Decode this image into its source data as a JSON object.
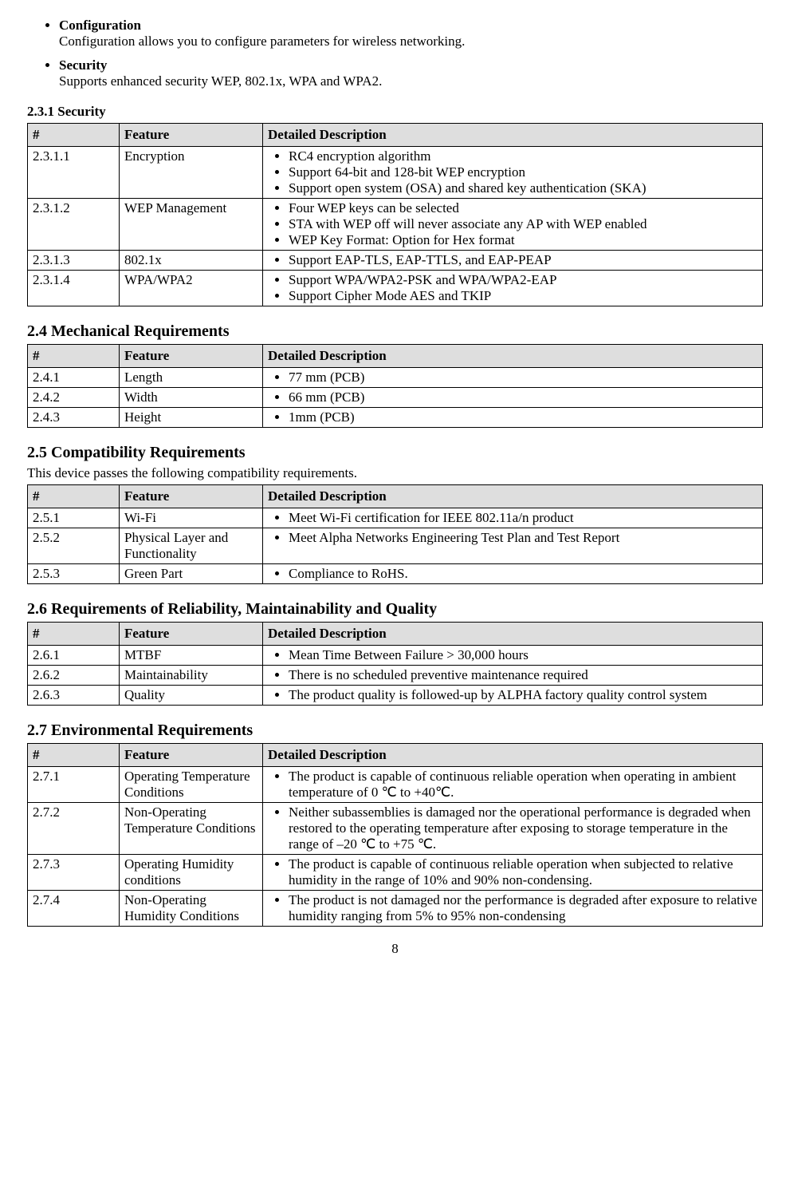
{
  "intro_bullets": [
    {
      "title": "Configuration",
      "body": "Configuration allows you to configure parameters for wireless networking."
    },
    {
      "title": "Security",
      "body": "Supports enhanced security WEP, 802.1x, WPA and WPA2."
    }
  ],
  "table_headers": {
    "num": "#",
    "feature": "Feature",
    "desc": "Detailed Description"
  },
  "s231": {
    "title": "2.3.1 Security",
    "rows": [
      {
        "num": "2.3.1.1",
        "feature": "Encryption",
        "items": [
          "RC4 encryption algorithm",
          "Support 64-bit and 128-bit WEP encryption",
          "Support open system (OSA) and shared key authentication (SKA)"
        ]
      },
      {
        "num": "2.3.1.2",
        "feature": "WEP Management",
        "items": [
          "Four WEP keys can be selected",
          "STA with WEP off will never associate any AP with WEP enabled",
          "WEP Key Format: Option for Hex format"
        ]
      },
      {
        "num": "2.3.1.3",
        "feature": "802.1x",
        "items": [
          "Support EAP-TLS, EAP-TTLS, and EAP-PEAP"
        ]
      },
      {
        "num": "2.3.1.4",
        "feature": "WPA/WPA2",
        "items": [
          "Support WPA/WPA2-PSK and WPA/WPA2-EAP",
          "Support Cipher Mode AES and TKIP"
        ]
      }
    ]
  },
  "s24": {
    "title": "2.4 Mechanical Requirements",
    "rows": [
      {
        "num": "2.4.1",
        "feature": "Length",
        "items": [
          "77 mm (PCB)"
        ]
      },
      {
        "num": "2.4.2",
        "feature": "Width",
        "items": [
          "66 mm (PCB)"
        ]
      },
      {
        "num": "2.4.3",
        "feature": "Height",
        "items": [
          "1mm (PCB)"
        ]
      }
    ]
  },
  "s25": {
    "title": "2.5 Compatibility Requirements",
    "intro": "This device passes the following compatibility requirements.",
    "rows": [
      {
        "num": "2.5.1",
        "feature": "Wi-Fi",
        "items": [
          "Meet Wi-Fi certification for IEEE 802.11a/n product"
        ]
      },
      {
        "num": "2.5.2",
        "feature": "Physical Layer and Functionality",
        "items": [
          "Meet Alpha Networks Engineering Test Plan and Test Report"
        ]
      },
      {
        "num": "2.5.3",
        "feature": "Green Part",
        "items": [
          "Compliance to RoHS."
        ]
      }
    ]
  },
  "s26": {
    "title": "2.6 Requirements of Reliability, Maintainability and Quality",
    "rows": [
      {
        "num": "2.6.1",
        "feature": "MTBF",
        "items": [
          "Mean Time Between Failure > 30,000 hours"
        ]
      },
      {
        "num": "2.6.2",
        "feature": "Maintainability",
        "items": [
          "There is no scheduled preventive maintenance required"
        ]
      },
      {
        "num": "2.6.3",
        "feature": "Quality",
        "items": [
          "The product quality is followed-up by ALPHA factory quality control system"
        ]
      }
    ]
  },
  "s27": {
    "title": "2.7 Environmental Requirements",
    "rows": [
      {
        "num": "2.7.1",
        "feature": "Operating Temperature Conditions",
        "items": [
          "The product is capable of continuous reliable operation when operating in ambient temperature of 0 ℃ to +40℃."
        ]
      },
      {
        "num": "2.7.2",
        "feature": "Non-Operating Temperature Conditions",
        "items": [
          "Neither subassemblies is damaged nor the operational performance is degraded when restored to the operating temperature after exposing to storage temperature in the range of –20 ℃ to +75 ℃."
        ]
      },
      {
        "num": "2.7.3",
        "feature": "Operating Humidity conditions",
        "items": [
          "The product is capable of continuous reliable operation when subjected to relative humidity in the range of 10% and 90% non-condensing."
        ]
      },
      {
        "num": "2.7.4",
        "feature": "Non-Operating Humidity Conditions",
        "items": [
          "The product is not damaged nor the performance is degraded after exposure to relative humidity ranging from 5% to 95% non-condensing"
        ]
      }
    ]
  },
  "page_number": "8"
}
